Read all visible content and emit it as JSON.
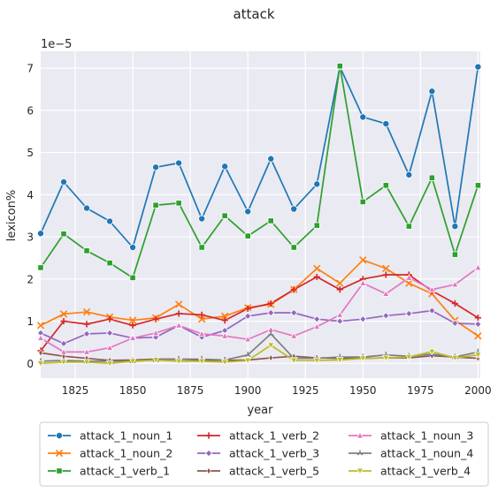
{
  "chart_data": {
    "type": "line",
    "title": "attack",
    "xlabel": "year",
    "ylabel": "lexicon%",
    "y_scale_label": "1e−5",
    "xlim": [
      1810,
      2001
    ],
    "ylim": [
      -0.35,
      7.4
    ],
    "x_ticks": [
      1825,
      1850,
      1875,
      1900,
      1925,
      1950,
      1975,
      2000
    ],
    "y_ticks": [
      0,
      1,
      2,
      3,
      4,
      5,
      6,
      7
    ],
    "grid": true,
    "legend_position": "bottom",
    "x": [
      1810,
      1820,
      1830,
      1840,
      1850,
      1860,
      1870,
      1880,
      1890,
      1900,
      1910,
      1920,
      1930,
      1940,
      1950,
      1960,
      1970,
      1980,
      1990,
      2000
    ],
    "series": [
      {
        "name": "attack_1_noun_1",
        "color": "#1f77b4",
        "marker": "circle",
        "values": [
          3.08,
          4.3,
          3.68,
          3.37,
          2.75,
          4.65,
          4.75,
          3.43,
          4.67,
          3.6,
          4.85,
          3.66,
          4.25,
          7.03,
          5.84,
          5.68,
          4.47,
          6.45,
          3.25,
          7.03
        ]
      },
      {
        "name": "attack_1_noun_2",
        "color": "#ff7f0e",
        "marker": "x",
        "values": [
          0.9,
          1.17,
          1.22,
          1.1,
          1.02,
          1.08,
          1.4,
          1.05,
          1.12,
          1.32,
          1.4,
          1.75,
          2.25,
          1.9,
          2.45,
          2.25,
          1.9,
          1.65,
          1.02,
          0.65
        ]
      },
      {
        "name": "attack_1_verb_1",
        "color": "#2ca02c",
        "marker": "square",
        "values": [
          2.27,
          3.07,
          2.67,
          2.38,
          2.03,
          3.75,
          3.8,
          2.75,
          3.5,
          3.02,
          3.38,
          2.75,
          3.27,
          7.05,
          3.83,
          4.22,
          3.25,
          4.4,
          2.58,
          4.22
        ]
      },
      {
        "name": "attack_1_verb_2",
        "color": "#d62728",
        "marker": "plus",
        "values": [
          0.3,
          1.0,
          0.93,
          1.05,
          0.9,
          1.05,
          1.18,
          1.15,
          1.02,
          1.3,
          1.42,
          1.75,
          2.05,
          1.75,
          2.0,
          2.1,
          2.1,
          1.72,
          1.42,
          1.08
        ]
      },
      {
        "name": "attack_1_verb_3",
        "color": "#9467bd",
        "marker": "diamond",
        "values": [
          0.72,
          0.47,
          0.7,
          0.72,
          0.6,
          0.62,
          0.9,
          0.62,
          0.78,
          1.12,
          1.2,
          1.2,
          1.05,
          1.0,
          1.05,
          1.13,
          1.18,
          1.25,
          0.95,
          0.93
        ]
      },
      {
        "name": "attack_1_verb_5",
        "color": "#8c564b",
        "marker": "thin_diamond",
        "values": [
          0.25,
          0.17,
          0.12,
          0.07,
          0.08,
          0.1,
          0.1,
          0.08,
          0.07,
          0.08,
          0.13,
          0.17,
          0.13,
          0.12,
          0.12,
          0.13,
          0.13,
          0.18,
          0.15,
          0.12
        ]
      },
      {
        "name": "attack_1_noun_3",
        "color": "#e377c2",
        "marker": "triangle-up",
        "values": [
          0.6,
          0.27,
          0.27,
          0.37,
          0.6,
          0.72,
          0.9,
          0.7,
          0.65,
          0.57,
          0.8,
          0.65,
          0.87,
          1.15,
          1.9,
          1.65,
          2.03,
          1.75,
          1.87,
          2.27
        ]
      },
      {
        "name": "attack_1_noun_4",
        "color": "#7f7f7f",
        "marker": "tri",
        "values": [
          0.05,
          0.07,
          0.05,
          0.05,
          0.05,
          0.08,
          0.1,
          0.1,
          0.08,
          0.2,
          0.7,
          0.12,
          0.12,
          0.15,
          0.15,
          0.2,
          0.17,
          0.22,
          0.15,
          0.27
        ]
      },
      {
        "name": "attack_1_verb_4",
        "color": "#bcbd22",
        "marker": "triangle-down",
        "values": [
          0.0,
          0.03,
          0.03,
          0.0,
          0.05,
          0.08,
          0.05,
          0.05,
          0.03,
          0.07,
          0.43,
          0.07,
          0.07,
          0.08,
          0.12,
          0.13,
          0.15,
          0.28,
          0.13,
          0.2
        ]
      }
    ]
  }
}
